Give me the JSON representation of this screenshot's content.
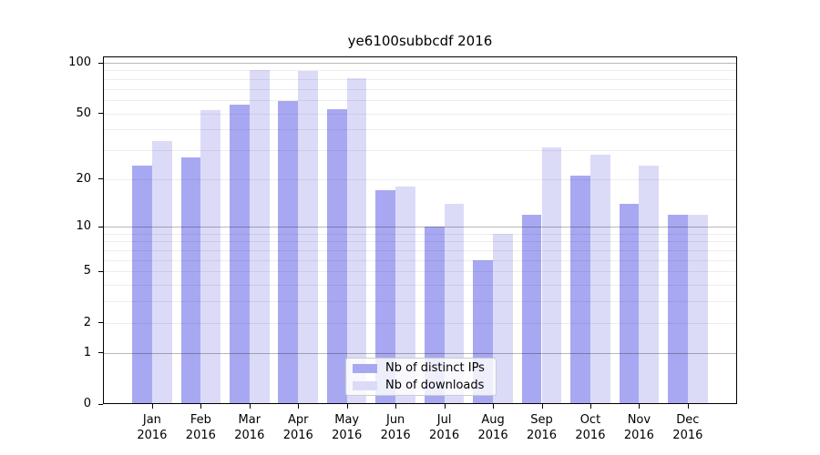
{
  "title": "ye6100subbcdf 2016",
  "legend": {
    "items": [
      {
        "label": "Nb of distinct IPs",
        "color": "#a8a8f2"
      },
      {
        "label": "Nb of downloads",
        "color": "#dbdbf8"
      }
    ]
  },
  "chart_data": {
    "type": "bar",
    "title": "ye6100subbcdf 2016",
    "categories": [
      "Jan 2016",
      "Feb 2016",
      "Mar 2016",
      "Apr 2016",
      "May 2016",
      "Jun 2016",
      "Jul 2016",
      "Aug 2016",
      "Sep 2016",
      "Oct 2016",
      "Nov 2016",
      "Dec 2016"
    ],
    "series": [
      {
        "name": "Nb of distinct IPs",
        "color": "#a8a8f2",
        "values": [
          24,
          27,
          56,
          59,
          53,
          17,
          10,
          6,
          12,
          21,
          14,
          12
        ]
      },
      {
        "name": "Nb of downloads",
        "color": "#dbdbf8",
        "values": [
          34,
          52,
          91,
          89,
          81,
          18,
          14,
          9,
          31,
          28,
          24,
          12
        ]
      }
    ],
    "xlabel": "",
    "ylabel": "",
    "yscale": "log1p",
    "ylim": [
      0,
      110
    ],
    "y_tick_values": [
      100,
      50,
      20,
      10,
      5,
      2,
      1,
      0
    ],
    "y_tick_labels": [
      "100",
      "50",
      "20",
      "10",
      "5",
      "2",
      "1",
      "0"
    ],
    "y_major_gridlines": [
      1,
      10,
      100
    ],
    "y_minor_gridlines": [
      2,
      3,
      4,
      5,
      6,
      7,
      8,
      9,
      20,
      30,
      40,
      50,
      60,
      70,
      80,
      90
    ],
    "grid": true,
    "legend_position": "lower center"
  }
}
